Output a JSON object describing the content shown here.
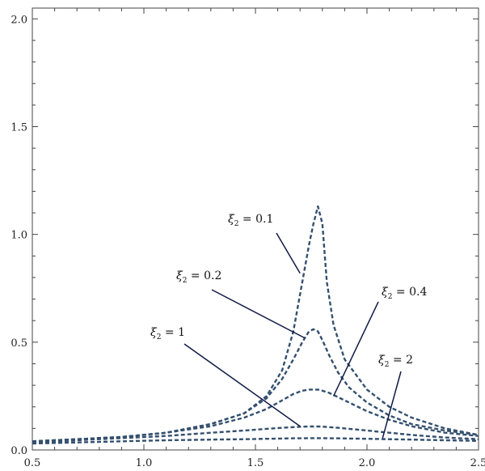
{
  "chart_data": {
    "type": "line",
    "title": "",
    "xlabel": "",
    "ylabel": "",
    "xlim": [
      0.5,
      2.5
    ],
    "ylim": [
      0.0,
      2.05
    ],
    "grid": false,
    "legend": "none",
    "x_ticks": [
      0.5,
      1.0,
      1.5,
      2.0,
      2.5
    ],
    "x_tick_labels": [
      "0.5",
      "1.0",
      "1.5",
      "2.0",
      "2.5"
    ],
    "y_ticks": [
      0.0,
      0.5,
      1.0,
      1.5,
      2.0
    ],
    "y_tick_labels": [
      "0.0",
      "0.5",
      "1.0",
      "1.5",
      "2.0"
    ],
    "line_color": "#34506e",
    "series": [
      {
        "x": [
          0.5,
          0.7,
          0.9,
          1.1,
          1.3,
          1.45,
          1.55,
          1.62,
          1.67,
          1.71,
          1.74,
          1.76,
          1.78,
          1.8,
          1.82,
          1.85,
          1.9,
          2.0,
          2.1,
          2.2,
          2.35,
          2.5
        ],
        "y": [
          0.04,
          0.05,
          0.06,
          0.08,
          0.12,
          0.17,
          0.25,
          0.37,
          0.55,
          0.78,
          0.95,
          1.05,
          1.13,
          1.05,
          0.78,
          0.58,
          0.42,
          0.28,
          0.2,
          0.15,
          0.1,
          0.07
        ]
      },
      {
        "x": [
          0.5,
          0.7,
          0.9,
          1.1,
          1.3,
          1.45,
          1.55,
          1.62,
          1.67,
          1.71,
          1.74,
          1.76,
          1.78,
          1.8,
          1.83,
          1.87,
          1.92,
          2.0,
          2.1,
          2.2,
          2.35,
          2.5
        ],
        "y": [
          0.04,
          0.05,
          0.06,
          0.08,
          0.12,
          0.17,
          0.24,
          0.33,
          0.42,
          0.5,
          0.55,
          0.56,
          0.55,
          0.51,
          0.44,
          0.36,
          0.29,
          0.22,
          0.16,
          0.12,
          0.09,
          0.07
        ]
      },
      {
        "x": [
          0.5,
          0.7,
          0.9,
          1.1,
          1.3,
          1.45,
          1.55,
          1.62,
          1.67,
          1.71,
          1.74,
          1.76,
          1.78,
          1.8,
          1.83,
          1.87,
          1.92,
          2.0,
          2.1,
          2.2,
          2.35,
          2.5
        ],
        "y": [
          0.04,
          0.05,
          0.06,
          0.08,
          0.11,
          0.15,
          0.19,
          0.23,
          0.26,
          0.275,
          0.28,
          0.28,
          0.28,
          0.275,
          0.265,
          0.245,
          0.22,
          0.18,
          0.14,
          0.11,
          0.08,
          0.065
        ]
      },
      {
        "x": [
          0.5,
          0.7,
          0.9,
          1.1,
          1.3,
          1.45,
          1.55,
          1.62,
          1.67,
          1.71,
          1.74,
          1.76,
          1.78,
          1.8,
          1.83,
          1.87,
          1.92,
          2.0,
          2.1,
          2.2,
          2.35,
          2.5
        ],
        "y": [
          0.035,
          0.045,
          0.055,
          0.065,
          0.08,
          0.09,
          0.098,
          0.103,
          0.106,
          0.108,
          0.109,
          0.109,
          0.109,
          0.108,
          0.106,
          0.103,
          0.098,
          0.09,
          0.08,
          0.07,
          0.058,
          0.05
        ]
      },
      {
        "x": [
          0.5,
          0.7,
          0.9,
          1.1,
          1.3,
          1.45,
          1.55,
          1.62,
          1.67,
          1.71,
          1.74,
          1.76,
          1.78,
          1.8,
          1.83,
          1.87,
          1.92,
          2.0,
          2.1,
          2.2,
          2.35,
          2.5
        ],
        "y": [
          0.03,
          0.035,
          0.04,
          0.045,
          0.048,
          0.05,
          0.052,
          0.053,
          0.054,
          0.054,
          0.055,
          0.055,
          0.055,
          0.055,
          0.054,
          0.054,
          0.053,
          0.052,
          0.05,
          0.048,
          0.045,
          0.042
        ]
      }
    ],
    "annotations": [
      {
        "symbol": "ξ",
        "subscript": "2",
        "text": " = 0.1",
        "arrow_to": [
          1.7,
          0.82
        ]
      },
      {
        "symbol": "ξ",
        "subscript": "2",
        "text": " = 0.2",
        "arrow_to": [
          1.72,
          0.52
        ]
      },
      {
        "symbol": "ξ",
        "subscript": "2",
        "text": " = 0.4",
        "arrow_to": [
          1.85,
          0.25
        ]
      },
      {
        "symbol": "ξ",
        "subscript": "2",
        "text": " = 1",
        "arrow_to": [
          1.7,
          0.11
        ]
      },
      {
        "symbol": "ξ",
        "subscript": "2",
        "text": " = 2",
        "arrow_to": [
          2.07,
          0.055
        ]
      }
    ]
  }
}
